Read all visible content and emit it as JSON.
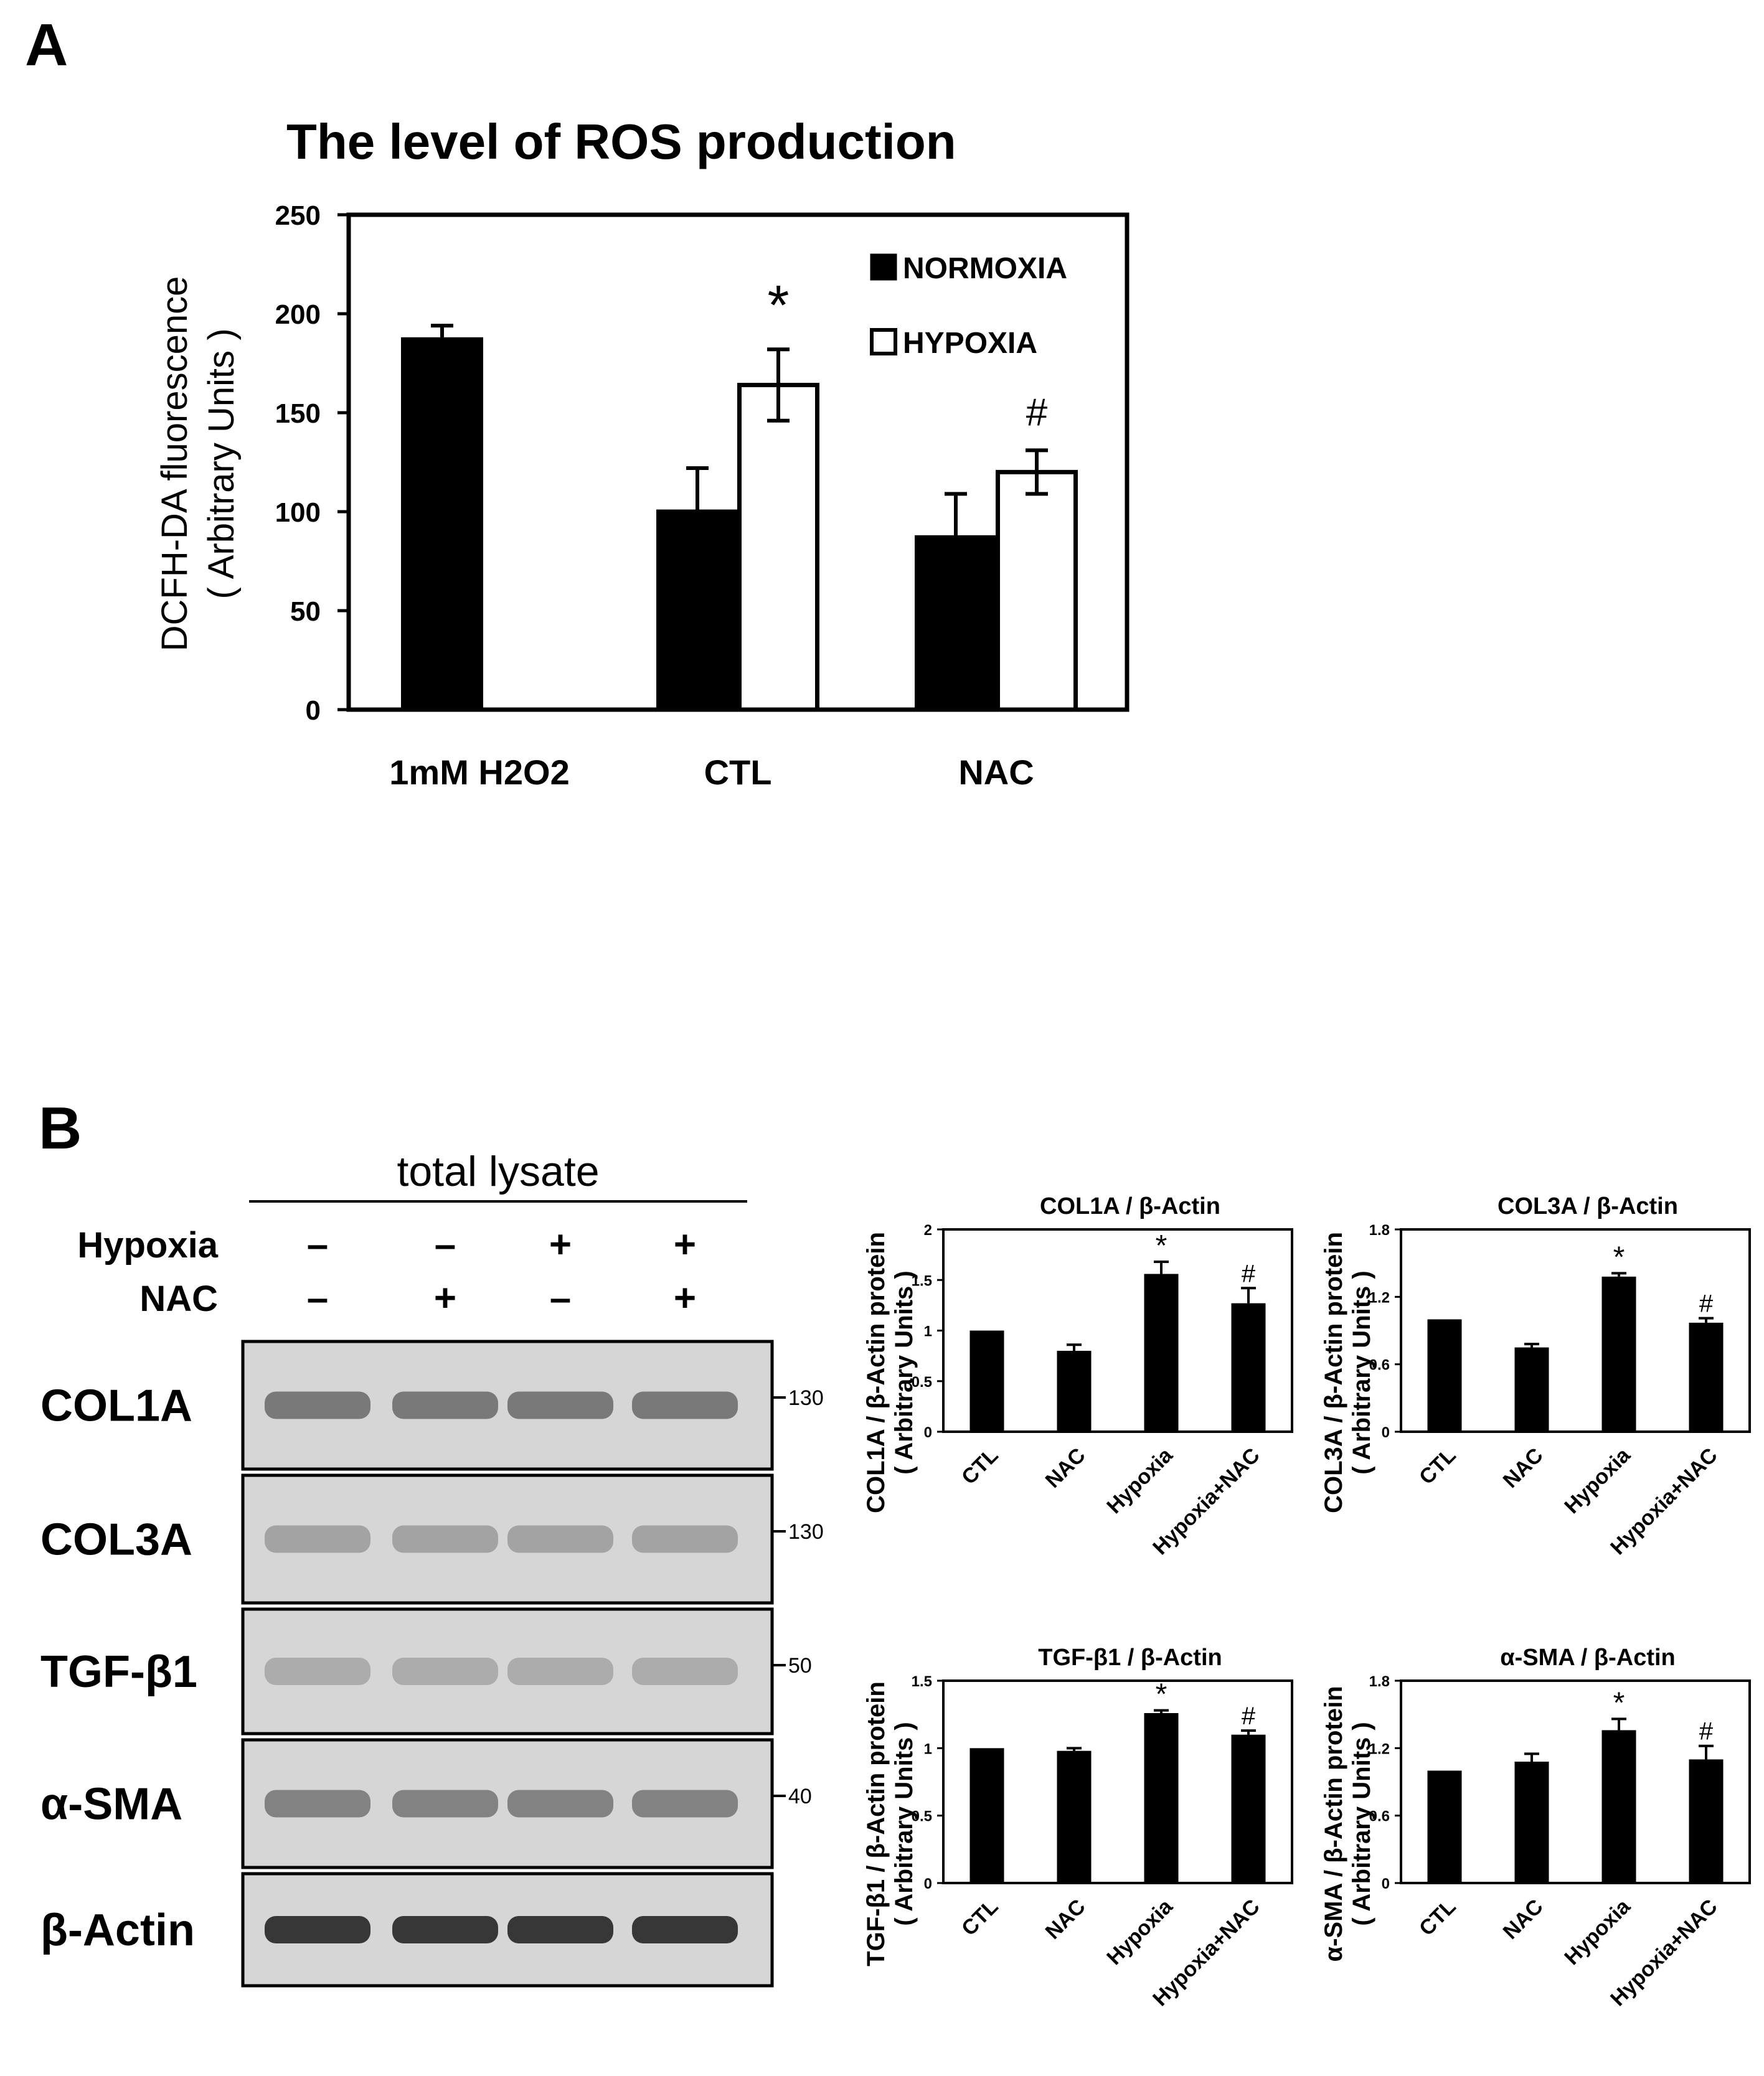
{
  "panel_labels": {
    "a": "A",
    "b": "B"
  },
  "colors": {
    "normoxia_fill": "#000000",
    "hypoxia_fill": "#ffffff",
    "stroke": "#000000",
    "blot_bg": "#d6d6d6",
    "band": "#2e2e2e"
  },
  "chart_data": [
    {
      "id": "ros",
      "type": "bar",
      "title": "The level of ROS production",
      "ylabel_line1": "DCFH-DA  fluorescence",
      "ylabel_line2": "( Arbitrary Units )",
      "categories": [
        "1mM H2O2",
        "CTL",
        "NAC"
      ],
      "ylim": [
        0,
        250
      ],
      "yticks": [
        "0",
        "50",
        "100",
        "150",
        "200",
        "250"
      ],
      "series": [
        {
          "name": "NORMOXIA",
          "values": [
            187,
            100,
            87
          ],
          "errors": [
            7,
            22,
            22
          ]
        },
        {
          "name": "HYPOXIA",
          "values": [
            null,
            164,
            120
          ],
          "errors": [
            null,
            18,
            11
          ]
        }
      ],
      "annotations": [
        {
          "category": "CTL",
          "series": "HYPOXIA",
          "text": "*"
        },
        {
          "category": "NAC",
          "series": "HYPOXIA",
          "text": "#"
        }
      ],
      "legend_position": "top-right",
      "grid": false
    },
    {
      "id": "col1a",
      "type": "bar",
      "title": "COL1A / β-Actin",
      "ylabel_line1": "COL1A / β-Actin protein",
      "ylabel_line2": "( Arbitrary Units )",
      "categories": [
        "CTL",
        "NAC",
        "Hypoxia",
        "Hypoxia+NAC"
      ],
      "ylim": [
        0,
        2
      ],
      "yticks": [
        "0",
        "0.5",
        "1",
        "1.5",
        "2"
      ],
      "values": [
        1.0,
        0.8,
        1.56,
        1.27
      ],
      "errors": [
        0,
        0.06,
        0.12,
        0.15
      ],
      "marks": [
        "",
        "",
        "*",
        "#"
      ]
    },
    {
      "id": "col3a",
      "type": "bar",
      "title": "COL3A / β-Actin",
      "ylabel_line1": "COL3A / β-Actin protein",
      "ylabel_line2": "( Arbitrary Units )",
      "categories": [
        "CTL",
        "NAC",
        "Hypoxia",
        "Hypoxia+NAC"
      ],
      "ylim": [
        0,
        1.8
      ],
      "yticks": [
        "0",
        "0.6",
        "1.2",
        "1.8"
      ],
      "values": [
        1.0,
        0.75,
        1.38,
        0.97
      ],
      "errors": [
        0,
        0.03,
        0.03,
        0.04
      ],
      "marks": [
        "",
        "",
        "*",
        "#"
      ]
    },
    {
      "id": "tgfb1",
      "type": "bar",
      "title": "TGF-β1 / β-Actin",
      "ylabel_line1": "TGF-β1 / β-Actin protein",
      "ylabel_line2": "( Arbitrary Units )",
      "categories": [
        "CTL",
        "NAC",
        "Hypoxia",
        "Hypoxia+NAC"
      ],
      "ylim": [
        0,
        1.5
      ],
      "yticks": [
        "0",
        "0.5",
        "1",
        "1.5"
      ],
      "values": [
        1.0,
        0.98,
        1.26,
        1.1
      ],
      "errors": [
        0,
        0.02,
        0.02,
        0.03
      ],
      "marks": [
        "",
        "",
        "*",
        "#"
      ]
    },
    {
      "id": "asma",
      "type": "bar",
      "title": "α-SMA / β-Actin",
      "ylabel_line1": "α-SMA / β-Actin protein",
      "ylabel_line2": "( Arbitrary Units )",
      "categories": [
        "CTL",
        "NAC",
        "Hypoxia",
        "Hypoxia+NAC"
      ],
      "ylim": [
        0,
        1.8
      ],
      "yticks": [
        "0",
        "0.6",
        "1.2",
        "1.8"
      ],
      "values": [
        1.0,
        1.08,
        1.36,
        1.1
      ],
      "errors": [
        0,
        0.07,
        0.1,
        0.12
      ],
      "marks": [
        "",
        "",
        "*",
        "#"
      ]
    }
  ],
  "western_blot": {
    "header": "total lysate",
    "conditions": [
      {
        "label": "Hypoxia",
        "signs": [
          "–",
          "–",
          "+",
          "+"
        ]
      },
      {
        "label": "NAC",
        "signs": [
          "–",
          "+",
          "–",
          "+"
        ]
      }
    ],
    "blots": [
      {
        "label": "COL1A",
        "marker": "130",
        "band_level": 0.55
      },
      {
        "label": "COL3A",
        "marker": "130",
        "band_level": 0.3
      },
      {
        "label": "TGF-β1",
        "marker": "50",
        "band_level": 0.25
      },
      {
        "label": "α-SMA",
        "marker": "40",
        "band_level": 0.5
      },
      {
        "label": "β-Actin",
        "marker": "",
        "band_level": 0.95
      }
    ]
  }
}
